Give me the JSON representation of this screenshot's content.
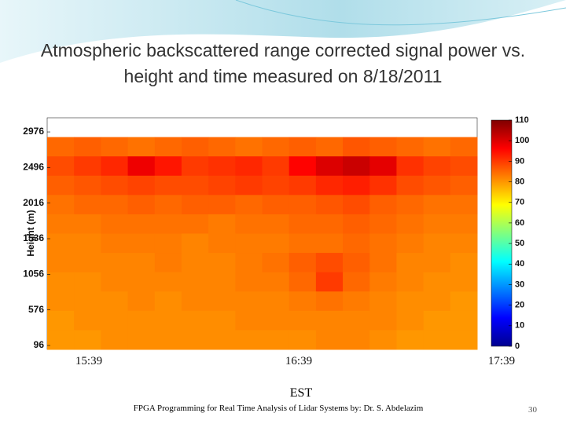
{
  "slide": {
    "footer": "FPGA Programming for Real Time Analysis of Lidar Systems by: Dr. S. Abdelazim",
    "page_number": "30"
  },
  "chart_data": {
    "type": "heatmap",
    "title": "Atmospheric backscattered range corrected signal power vs. height and time measured on 8/18/2011",
    "ylabel": "Height (m)",
    "xlabel": "EST",
    "x_labels": [
      "15:39",
      "16:39",
      "17:39"
    ],
    "ylim": [
      43,
      3167
    ],
    "yticks": [
      96,
      576,
      1056,
      1536,
      2016,
      2496,
      2976
    ],
    "clim": [
      0,
      110
    ],
    "cticks": [
      0,
      10,
      20,
      30,
      40,
      50,
      60,
      70,
      80,
      90,
      100,
      110
    ],
    "colormap": "jet",
    "z": [
      [
        null,
        null,
        null,
        null,
        null,
        null,
        null,
        null,
        null,
        null,
        null,
        null,
        null,
        null,
        null,
        null
      ],
      [
        85,
        86,
        85,
        84,
        85,
        86,
        85,
        84,
        85,
        86,
        85,
        87,
        86,
        85,
        84,
        85
      ],
      [
        88,
        90,
        92,
        98,
        94,
        90,
        91,
        92,
        90,
        96,
        100,
        102,
        99,
        91,
        89,
        88
      ],
      [
        86,
        87,
        88,
        89,
        88,
        88,
        89,
        90,
        89,
        90,
        92,
        93,
        91,
        88,
        87,
        86
      ],
      [
        84,
        85,
        85,
        86,
        85,
        86,
        86,
        85,
        86,
        86,
        87,
        88,
        86,
        85,
        84,
        84
      ],
      [
        83,
        83,
        84,
        84,
        84,
        84,
        83,
        84,
        84,
        85,
        85,
        86,
        85,
        84,
        83,
        83
      ],
      [
        82,
        82,
        83,
        83,
        83,
        82,
        83,
        83,
        83,
        84,
        84,
        85,
        84,
        83,
        82,
        82
      ],
      [
        82,
        82,
        82,
        82,
        83,
        82,
        82,
        83,
        84,
        86,
        88,
        86,
        84,
        82,
        82,
        81
      ],
      [
        81,
        81,
        82,
        82,
        82,
        82,
        82,
        83,
        83,
        85,
        90,
        85,
        83,
        82,
        81,
        81
      ],
      [
        81,
        81,
        81,
        82,
        81,
        82,
        82,
        82,
        82,
        83,
        84,
        83,
        82,
        81,
        81,
        80
      ],
      [
        80,
        81,
        81,
        81,
        81,
        81,
        81,
        82,
        82,
        82,
        82,
        82,
        82,
        81,
        80,
        80
      ],
      [
        80,
        80,
        81,
        81,
        81,
        81,
        81,
        81,
        81,
        81,
        82,
        82,
        81,
        80,
        80,
        80
      ]
    ]
  }
}
